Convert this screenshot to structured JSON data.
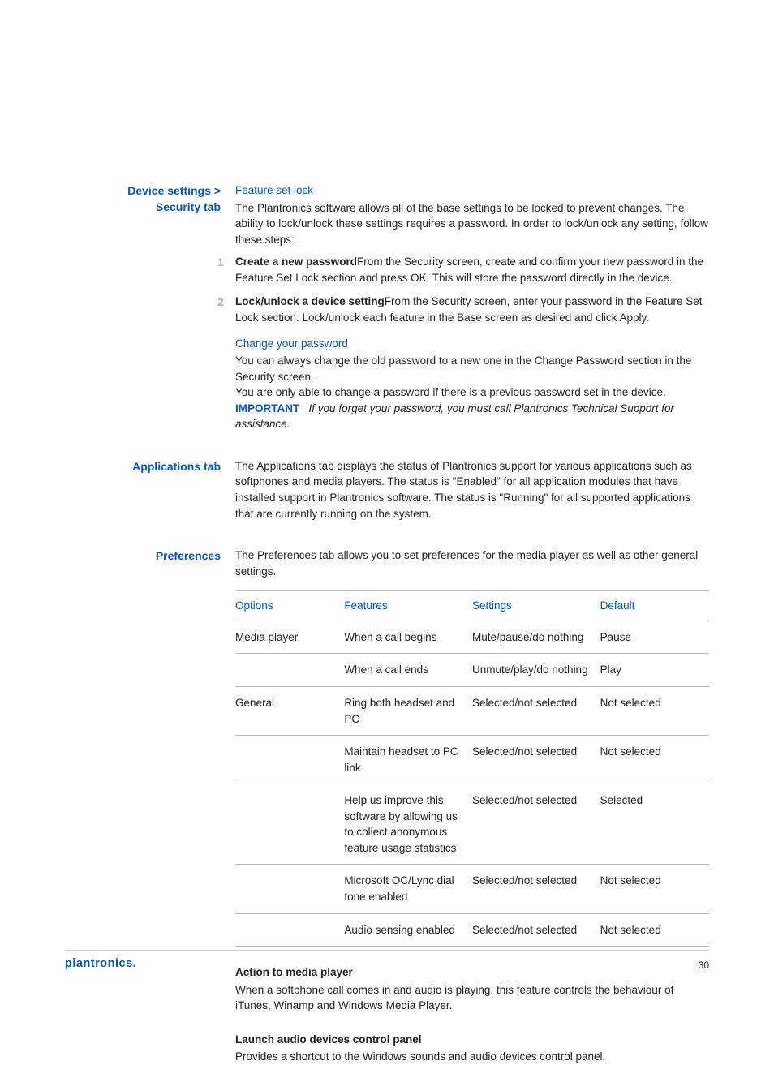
{
  "colors": {
    "link": "#0056c4",
    "text": "#222",
    "rule": "#bbb",
    "step_num": "#b0b0b0"
  },
  "s1": {
    "label_l1": "Device settings >",
    "label_l2": "Security tab",
    "h1": "Feature set lock",
    "p1": "The Plantronics software allows all of the base settings to be locked to prevent changes. The ability to lock/unlock these settings requires a password. In order to lock/unlock any setting, follow these steps:",
    "step1_b": "Create a new password",
    "step1_t": "From the Security screen, create and confirm your new password in the Feature Set Lock section and press OK. This will store the password directly in the device.",
    "step2_b": "Lock/unlock a device setting",
    "step2_t": "From the Security screen, enter your password in the Feature Set Lock section. Lock/unlock each feature in the Base screen as desired and click Apply.",
    "h2": "Change your password",
    "p2a": "You can always change the old password to a new one in the Change Password section in the Security screen.",
    "p2b": "You are only able to change a password if there is a previous password set in the device.",
    "imp_label": "IMPORTANT",
    "imp_text": "If you forget your password, you must call Plantronics Technical Support for assistance."
  },
  "s2": {
    "label": "Applications tab",
    "p": "The Applications tab displays the status of Plantronics support for various applications such as softphones and media players. The status is \"Enabled\" for all application modules that have installed support in Plantronics software. The status is \"Running\" for all supported applications that are currently running on the system."
  },
  "s3": {
    "label": "Preferences",
    "p": "The Preferences tab allows you to set preferences for the media player as well as other general settings.",
    "columns": [
      "Options",
      "Features",
      "Settings",
      "Default"
    ],
    "rows": [
      [
        "Media player",
        "When a call begins",
        "Mute/pause/do nothing",
        "Pause"
      ],
      [
        "",
        "When a call ends",
        "Unmute/play/do nothing",
        "Play"
      ],
      [
        "General",
        "Ring both headset and PC",
        "Selected/not selected",
        "Not selected"
      ],
      [
        "",
        "Maintain headset to PC link",
        "Selected/not selected",
        "Not selected"
      ],
      [
        "",
        "Help us improve this software by allowing us to collect anonymous feature usage statistics",
        "Selected/not selected",
        "Selected"
      ],
      [
        "",
        "Microsoft OC/Lync dial tone enabled",
        "Selected/not selected",
        "Not selected"
      ],
      [
        "",
        "Audio sensing enabled",
        "Selected/not selected",
        "Not selected"
      ]
    ],
    "sub1_h": "Action to media player",
    "sub1_p": "When a softphone call comes in and audio is playing, this feature controls the behaviour of iTunes, Winamp and Windows Media Player.",
    "sub2_h": "Launch audio devices control panel",
    "sub2_p": "Provides a shortcut to the Windows sounds and audio devices control panel."
  },
  "footer": {
    "logo": "plantronics",
    "page": "30"
  }
}
